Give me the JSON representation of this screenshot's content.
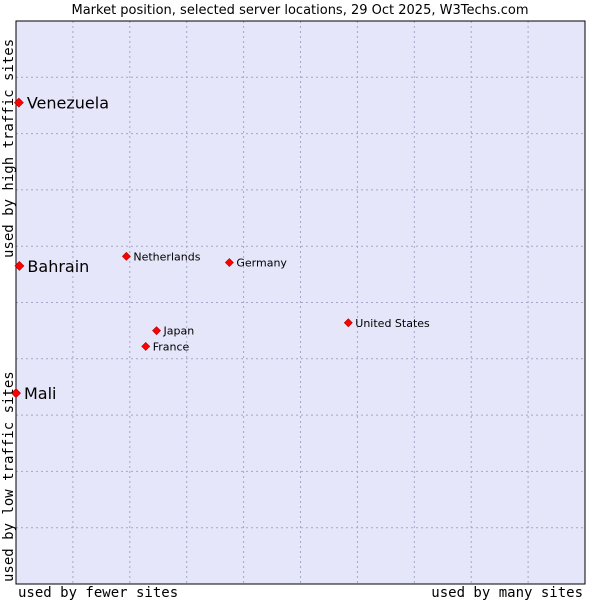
{
  "chart_data": {
    "type": "scatter",
    "title": "Market position, selected server locations, 29 Oct 2025, W3Techs.com",
    "xlabel_left": "used by fewer sites",
    "xlabel_right": "used by many sites",
    "ylabel_bottom": "used by low traffic sites",
    "ylabel_top": "used by high traffic sites",
    "xlim": [
      0,
      100
    ],
    "ylim": [
      0,
      100
    ],
    "grid": true,
    "colors": {
      "plot_bg": "#e6e6fa",
      "grid": "#a6a6c8",
      "point": "#ff0000",
      "border": "#000000"
    },
    "points": [
      {
        "label": "Venezuela",
        "x": 0.5,
        "y": 85.5,
        "emphasis": true
      },
      {
        "label": "Bahrain",
        "x": 0.6,
        "y": 56.5,
        "emphasis": true
      },
      {
        "label": "Mali",
        "x": 0.0,
        "y": 33.9,
        "emphasis": true
      },
      {
        "label": "Netherlands",
        "x": 19.4,
        "y": 58.2,
        "emphasis": false
      },
      {
        "label": "Germany",
        "x": 37.5,
        "y": 57.1,
        "emphasis": false
      },
      {
        "label": "United States",
        "x": 58.4,
        "y": 46.4,
        "emphasis": false
      },
      {
        "label": "Japan",
        "x": 24.7,
        "y": 45.0,
        "emphasis": false
      },
      {
        "label": "France",
        "x": 22.8,
        "y": 42.2,
        "emphasis": false
      }
    ]
  }
}
